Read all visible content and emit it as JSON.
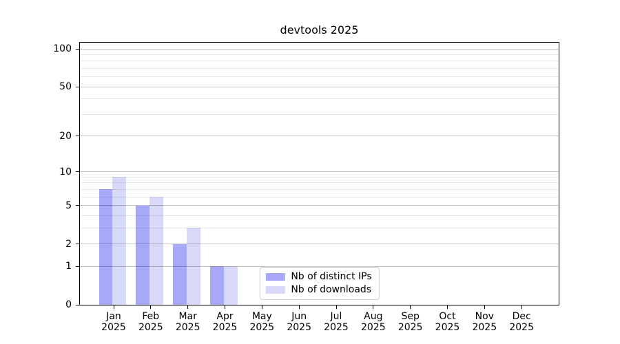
{
  "chart": {
    "title": "devtools 2025"
  },
  "chart_data": {
    "type": "bar",
    "title": "devtools 2025",
    "categories": [
      "Jan",
      "Feb",
      "Mar",
      "Apr",
      "May",
      "Jun",
      "Jul",
      "Aug",
      "Sep",
      "Oct",
      "Nov",
      "Dec"
    ],
    "category_year": "2025",
    "series": [
      {
        "name": "Nb of distinct IPs",
        "color": "#a8a8f8",
        "values": [
          7,
          5,
          2,
          1,
          0,
          0,
          0,
          0,
          0,
          0,
          0,
          0
        ]
      },
      {
        "name": "Nb of downloads",
        "color": "#d8d8f8",
        "values": [
          9,
          6,
          3,
          1,
          0,
          0,
          0,
          0,
          0,
          0,
          0,
          0
        ]
      }
    ],
    "xlabel": "",
    "ylabel": "",
    "yscale": "log10(value+1)",
    "yticks": [
      0,
      1,
      2,
      5,
      10,
      20,
      50,
      100
    ],
    "minor_gridlines": [
      3,
      4,
      6,
      7,
      8,
      9,
      30,
      40,
      60,
      70,
      80,
      90
    ],
    "ylim": [
      0,
      112
    ],
    "xlim": [
      -0.91,
      12.0
    ],
    "grid": true,
    "grid_on_top": true,
    "legend_position": "lower center",
    "bar_width": 0.37,
    "bar_offsets": [
      -0.4,
      -0.03
    ]
  }
}
